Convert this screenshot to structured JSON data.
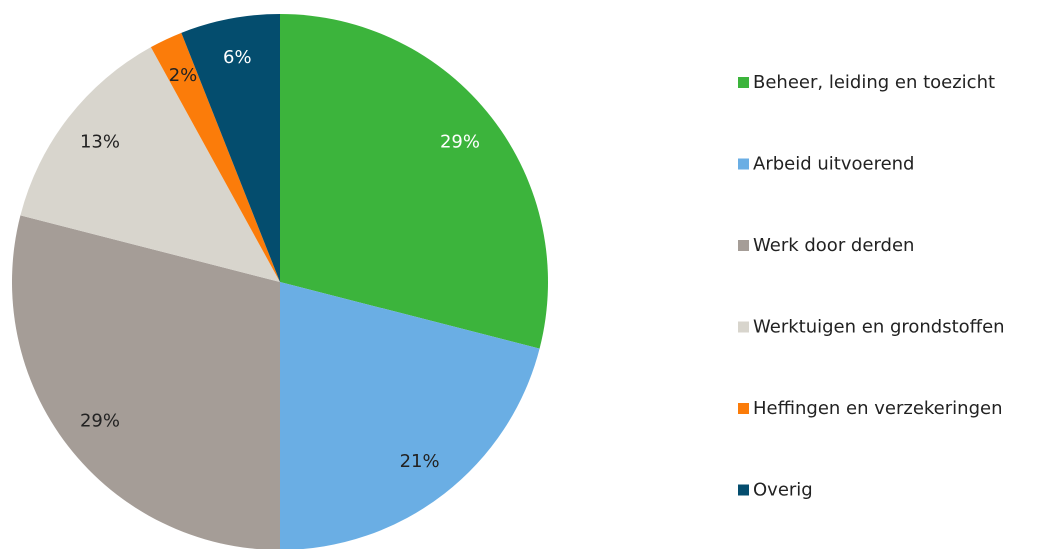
{
  "chart_data": {
    "type": "pie",
    "categories": [
      "Beheer, leiding en toezicht",
      "Arbeid uitvoerend",
      "Werk door derden",
      "Werktuigen en grondstoffen",
      "Heffingen en verzekeringen",
      "Overig"
    ],
    "values": [
      29,
      21,
      29,
      13,
      2,
      6
    ],
    "value_labels": [
      "29%",
      "21%",
      "29%",
      "13%",
      "2%",
      "6%"
    ],
    "colors": [
      "#3cb43c",
      "#6aaee4",
      "#a59d97",
      "#d8d5cd",
      "#fb7c0a",
      "#044d6e"
    ],
    "legend": "right"
  }
}
